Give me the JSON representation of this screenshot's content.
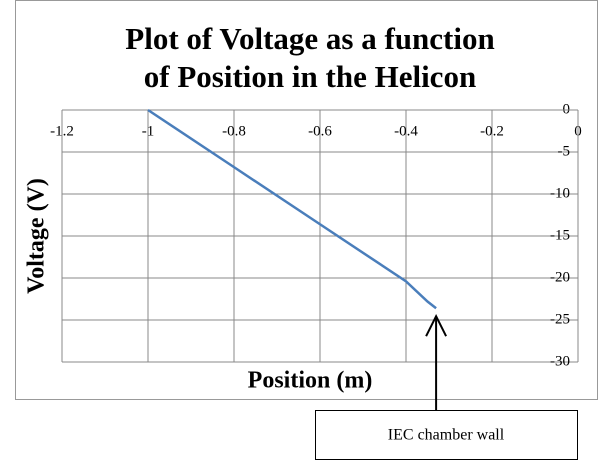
{
  "chart_data": {
    "type": "line",
    "title": [
      "Plot of Voltage as a function",
      "of Position in the Helicon"
    ],
    "x_label": "Position (m)",
    "y_label": "Voltage (V)",
    "series": [
      {
        "name": "Voltage",
        "color": "#4a7ebb",
        "x": [
          -1,
          -0.8,
          -0.6,
          -0.4,
          -0.35,
          -0.33
        ],
        "values": [
          0,
          -6.8,
          -13.6,
          -20.4,
          -22.8,
          -23.6
        ]
      }
    ],
    "xlim": [
      -1.2,
      0
    ],
    "xticks": [
      -1.2,
      -1,
      -0.8,
      -0.6,
      -0.4,
      -0.2,
      0
    ],
    "ylim": [
      -30,
      0
    ],
    "yticks": [
      0,
      -5,
      -10,
      -15,
      -20,
      -25,
      -30
    ],
    "grid": true,
    "annotation": {
      "text": "IEC chamber wall",
      "x": -0.33,
      "y": -23.6
    }
  }
}
